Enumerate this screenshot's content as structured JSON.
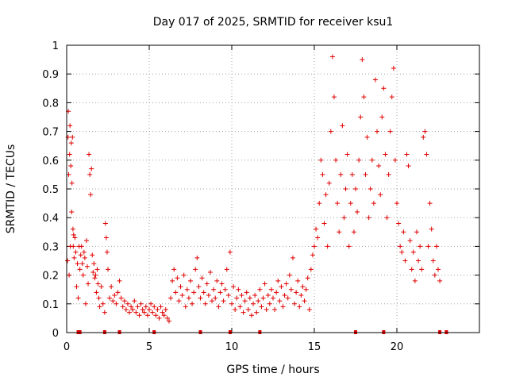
{
  "chart_data": {
    "type": "scatter",
    "title": "Day 017 of 2025, SRMTID for receiver ksu1",
    "xlabel": "GPS time / hours",
    "ylabel": "SRMTID / TECUs",
    "xlim": [
      0,
      25
    ],
    "ylim": [
      0,
      1
    ],
    "x_ticks": [
      "0",
      "5",
      "10",
      "15",
      "20"
    ],
    "x_tick_values": [
      0,
      5,
      10,
      15,
      20
    ],
    "y_ticks": [
      "0",
      "0.1",
      "0.2",
      "0.3",
      "0.4",
      "0.5",
      "0.6",
      "0.7",
      "0.8",
      "0.9",
      "1"
    ],
    "y_tick_values": [
      0,
      0.1,
      0.2,
      0.3,
      0.4,
      0.5,
      0.6,
      0.7,
      0.8,
      0.9,
      1.0
    ],
    "grid": true,
    "marker": "+",
    "color": "#e00000",
    "series": [
      {
        "name": "SRMTID",
        "points": [
          [
            0.05,
            0.25
          ],
          [
            0.08,
            0.68
          ],
          [
            0.1,
            0.77
          ],
          [
            0.12,
            0.55
          ],
          [
            0.15,
            0.2
          ],
          [
            0.18,
            0.62
          ],
          [
            0.2,
            0.72
          ],
          [
            0.22,
            0.3
          ],
          [
            0.25,
            0.58
          ],
          [
            0.28,
            0.66
          ],
          [
            0.3,
            0.42
          ],
          [
            0.32,
            0.52
          ],
          [
            0.35,
            0.68
          ],
          [
            0.38,
            0.36
          ],
          [
            0.4,
            0.3
          ],
          [
            0.42,
            0.34
          ],
          [
            0.45,
            0.26
          ],
          [
            0.5,
            0.33
          ],
          [
            0.55,
            0.28
          ],
          [
            0.6,
            0.16
          ],
          [
            0.65,
            0.24
          ],
          [
            0.7,
            0.12
          ],
          [
            0.75,
            0.3
          ],
          [
            0.8,
            0.22
          ],
          [
            0.85,
            0.27
          ],
          [
            0.9,
            0.3
          ],
          [
            0.95,
            0.24
          ],
          [
            1.0,
            0.2
          ],
          [
            1.05,
            0.28
          ],
          [
            1.1,
            0.26
          ],
          [
            1.15,
            0.1
          ],
          [
            1.2,
            0.32
          ],
          [
            1.25,
            0.23
          ],
          [
            1.3,
            0.17
          ],
          [
            1.35,
            0.62
          ],
          [
            1.4,
            0.55
          ],
          [
            1.45,
            0.48
          ],
          [
            1.5,
            0.57
          ],
          [
            1.55,
            0.27
          ],
          [
            1.6,
            0.21
          ],
          [
            1.65,
            0.24
          ],
          [
            1.7,
            0.19
          ],
          [
            1.75,
            0.2
          ],
          [
            1.8,
            0.14
          ],
          [
            1.85,
            0.22
          ],
          [
            1.9,
            0.17
          ],
          [
            1.95,
            0.12
          ],
          [
            2.0,
            0.09
          ],
          [
            2.1,
            0.16
          ],
          [
            2.2,
            0.1
          ],
          [
            2.3,
            0.07
          ],
          [
            2.35,
            0.38
          ],
          [
            2.4,
            0.33
          ],
          [
            2.45,
            0.28
          ],
          [
            2.5,
            0.22
          ],
          [
            2.6,
            0.12
          ],
          [
            2.7,
            0.16
          ],
          [
            2.8,
            0.11
          ],
          [
            2.9,
            0.13
          ],
          [
            3.0,
            0.1
          ],
          [
            3.1,
            0.14
          ],
          [
            3.2,
            0.18
          ],
          [
            3.3,
            0.12
          ],
          [
            3.4,
            0.09
          ],
          [
            3.5,
            0.11
          ],
          [
            3.6,
            0.08
          ],
          [
            3.7,
            0.1
          ],
          [
            3.8,
            0.07
          ],
          [
            3.9,
            0.09
          ],
          [
            4.0,
            0.08
          ],
          [
            4.1,
            0.11
          ],
          [
            4.2,
            0.07
          ],
          [
            4.3,
            0.09
          ],
          [
            4.4,
            0.06
          ],
          [
            4.5,
            0.1
          ],
          [
            4.6,
            0.08
          ],
          [
            4.7,
            0.07
          ],
          [
            4.8,
            0.09
          ],
          [
            4.9,
            0.06
          ],
          [
            5.0,
            0.08
          ],
          [
            5.1,
            0.1
          ],
          [
            5.2,
            0.07
          ],
          [
            5.3,
            0.09
          ],
          [
            5.4,
            0.06
          ],
          [
            5.5,
            0.08
          ],
          [
            5.6,
            0.05
          ],
          [
            5.7,
            0.09
          ],
          [
            5.8,
            0.07
          ],
          [
            5.9,
            0.06
          ],
          [
            6.0,
            0.08
          ],
          [
            6.1,
            0.05
          ],
          [
            6.2,
            0.04
          ],
          [
            6.3,
            0.12
          ],
          [
            6.4,
            0.18
          ],
          [
            6.5,
            0.22
          ],
          [
            6.6,
            0.14
          ],
          [
            6.7,
            0.19
          ],
          [
            6.8,
            0.11
          ],
          [
            6.9,
            0.16
          ],
          [
            7.0,
            0.13
          ],
          [
            7.1,
            0.2
          ],
          [
            7.2,
            0.09
          ],
          [
            7.3,
            0.15
          ],
          [
            7.4,
            0.12
          ],
          [
            7.5,
            0.18
          ],
          [
            7.6,
            0.1
          ],
          [
            7.7,
            0.14
          ],
          [
            7.8,
            0.22
          ],
          [
            7.9,
            0.26
          ],
          [
            8.0,
            0.16
          ],
          [
            8.1,
            0.12
          ],
          [
            8.2,
            0.19
          ],
          [
            8.3,
            0.14
          ],
          [
            8.4,
            0.1
          ],
          [
            8.5,
            0.17
          ],
          [
            8.6,
            0.13
          ],
          [
            8.7,
            0.21
          ],
          [
            8.8,
            0.11
          ],
          [
            8.9,
            0.15
          ],
          [
            9.0,
            0.12
          ],
          [
            9.1,
            0.18
          ],
          [
            9.2,
            0.09
          ],
          [
            9.3,
            0.14
          ],
          [
            9.4,
            0.17
          ],
          [
            9.5,
            0.11
          ],
          [
            9.6,
            0.15
          ],
          [
            9.7,
            0.22
          ],
          [
            9.8,
            0.13
          ],
          [
            9.9,
            0.28
          ],
          [
            10.0,
            0.1
          ],
          [
            10.1,
            0.16
          ],
          [
            10.2,
            0.08
          ],
          [
            10.3,
            0.12
          ],
          [
            10.4,
            0.15
          ],
          [
            10.5,
            0.09
          ],
          [
            10.6,
            0.13
          ],
          [
            10.7,
            0.07
          ],
          [
            10.8,
            0.11
          ],
          [
            10.9,
            0.14
          ],
          [
            11.0,
            0.08
          ],
          [
            11.1,
            0.12
          ],
          [
            11.2,
            0.06
          ],
          [
            11.3,
            0.1
          ],
          [
            11.4,
            0.13
          ],
          [
            11.5,
            0.07
          ],
          [
            11.6,
            0.11
          ],
          [
            11.7,
            0.15
          ],
          [
            11.8,
            0.09
          ],
          [
            11.9,
            0.12
          ],
          [
            12.0,
            0.17
          ],
          [
            12.1,
            0.08
          ],
          [
            12.2,
            0.13
          ],
          [
            12.3,
            0.1
          ],
          [
            12.4,
            0.15
          ],
          [
            12.5,
            0.12
          ],
          [
            12.6,
            0.08
          ],
          [
            12.7,
            0.14
          ],
          [
            12.8,
            0.18
          ],
          [
            12.9,
            0.11
          ],
          [
            13.0,
            0.16
          ],
          [
            13.1,
            0.09
          ],
          [
            13.2,
            0.13
          ],
          [
            13.3,
            0.17
          ],
          [
            13.4,
            0.12
          ],
          [
            13.5,
            0.2
          ],
          [
            13.6,
            0.15
          ],
          [
            13.7,
            0.26
          ],
          [
            13.8,
            0.1
          ],
          [
            13.9,
            0.14
          ],
          [
            14.0,
            0.18
          ],
          [
            14.1,
            0.09
          ],
          [
            14.2,
            0.13
          ],
          [
            14.3,
            0.16
          ],
          [
            14.4,
            0.11
          ],
          [
            14.5,
            0.15
          ],
          [
            14.6,
            0.19
          ],
          [
            14.7,
            0.08
          ],
          [
            14.8,
            0.22
          ],
          [
            14.9,
            0.27
          ],
          [
            15.0,
            0.3
          ],
          [
            15.1,
            0.36
          ],
          [
            15.2,
            0.33
          ],
          [
            15.3,
            0.45
          ],
          [
            15.4,
            0.6
          ],
          [
            15.5,
            0.55
          ],
          [
            15.6,
            0.38
          ],
          [
            15.7,
            0.48
          ],
          [
            15.8,
            0.3
          ],
          [
            15.9,
            0.52
          ],
          [
            16.0,
            0.7
          ],
          [
            16.1,
            0.96
          ],
          [
            16.2,
            0.82
          ],
          [
            16.3,
            0.6
          ],
          [
            16.4,
            0.45
          ],
          [
            16.5,
            0.35
          ],
          [
            16.6,
            0.55
          ],
          [
            16.7,
            0.72
          ],
          [
            16.8,
            0.4
          ],
          [
            16.9,
            0.5
          ],
          [
            17.0,
            0.62
          ],
          [
            17.1,
            0.3
          ],
          [
            17.2,
            0.45
          ],
          [
            17.3,
            0.55
          ],
          [
            17.4,
            0.35
          ],
          [
            17.5,
            0.5
          ],
          [
            17.6,
            0.42
          ],
          [
            17.7,
            0.6
          ],
          [
            17.8,
            0.75
          ],
          [
            17.9,
            0.95
          ],
          [
            18.0,
            0.82
          ],
          [
            18.1,
            0.55
          ],
          [
            18.2,
            0.68
          ],
          [
            18.3,
            0.4
          ],
          [
            18.4,
            0.5
          ],
          [
            18.5,
            0.6
          ],
          [
            18.6,
            0.45
          ],
          [
            18.7,
            0.88
          ],
          [
            18.8,
            0.7
          ],
          [
            18.9,
            0.58
          ],
          [
            19.0,
            0.48
          ],
          [
            19.1,
            0.75
          ],
          [
            19.2,
            0.85
          ],
          [
            19.3,
            0.62
          ],
          [
            19.4,
            0.4
          ],
          [
            19.5,
            0.55
          ],
          [
            19.6,
            0.7
          ],
          [
            19.7,
            0.82
          ],
          [
            19.8,
            0.92
          ],
          [
            19.9,
            0.6
          ],
          [
            20.0,
            0.45
          ],
          [
            20.1,
            0.38
          ],
          [
            20.2,
            0.3
          ],
          [
            20.3,
            0.28
          ],
          [
            20.4,
            0.35
          ],
          [
            20.5,
            0.25
          ],
          [
            20.6,
            0.62
          ],
          [
            20.7,
            0.58
          ],
          [
            20.8,
            0.32
          ],
          [
            20.9,
            0.22
          ],
          [
            21.0,
            0.28
          ],
          [
            21.1,
            0.18
          ],
          [
            21.2,
            0.35
          ],
          [
            21.3,
            0.25
          ],
          [
            21.4,
            0.3
          ],
          [
            21.5,
            0.22
          ],
          [
            21.6,
            0.68
          ],
          [
            21.7,
            0.7
          ],
          [
            21.8,
            0.62
          ],
          [
            21.9,
            0.3
          ],
          [
            22.0,
            0.45
          ],
          [
            22.1,
            0.36
          ],
          [
            22.2,
            0.25
          ],
          [
            22.3,
            0.2
          ],
          [
            22.4,
            0.3
          ],
          [
            22.5,
            0.22
          ],
          [
            22.6,
            0.18
          ]
        ]
      }
    ],
    "gap_markers_x": [
      0.7,
      0.8,
      2.3,
      3.2,
      5.3,
      8.1,
      9.9,
      11.7,
      17.5,
      19.2,
      22.6,
      23.0
    ]
  }
}
